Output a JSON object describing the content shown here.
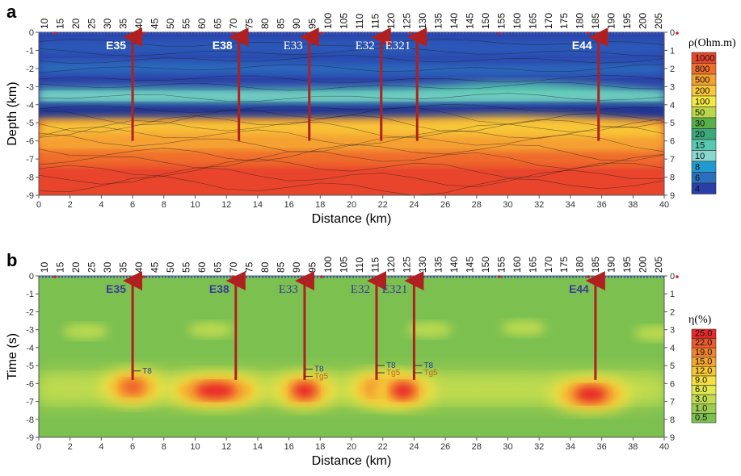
{
  "chart_data": [
    {
      "panel": "a",
      "type": "heatmap",
      "ylabel": "Depth (km)",
      "xlabel": "Distance (km)",
      "xlim": [
        0,
        40
      ],
      "ylim": [
        -9,
        0
      ],
      "x_ticks": [
        0,
        2,
        4,
        6,
        8,
        10,
        12,
        14,
        16,
        18,
        20,
        22,
        24,
        26,
        28,
        30,
        32,
        34,
        36,
        38,
        40
      ],
      "y_ticks": [
        0,
        -1,
        -2,
        -3,
        -4,
        -5,
        -6,
        -7,
        -8,
        -9
      ],
      "y_right_ticks": [
        0,
        1,
        2,
        3,
        4,
        5,
        6,
        7,
        8,
        9
      ],
      "station_ticks": [
        10,
        15,
        20,
        25,
        30,
        35,
        40,
        45,
        50,
        55,
        60,
        65,
        70,
        75,
        80,
        85,
        90,
        95,
        100,
        105,
        110,
        115,
        120,
        125,
        130,
        135,
        140,
        145,
        150,
        155,
        160,
        165,
        170,
        175,
        180,
        185,
        190,
        195,
        200,
        205
      ],
      "wells": [
        {
          "name": "E35",
          "x": 6.0,
          "font": "sans",
          "color": "#ffffff",
          "bottom": -6.0
        },
        {
          "name": "E38",
          "x": 12.8,
          "font": "sans",
          "color": "#ffffff",
          "bottom": -6.0
        },
        {
          "name": "E33",
          "x": 17.3,
          "font": "serif",
          "color": "#ffffff",
          "bottom": -6.0
        },
        {
          "name": "E32",
          "x": 21.9,
          "font": "serif",
          "color": "#ffffff",
          "bottom": -6.0
        },
        {
          "name": "E321",
          "x": 24.2,
          "font": "serif",
          "color": "#ffffff",
          "bottom": -6.0
        },
        {
          "name": "E44",
          "x": 35.8,
          "font": "sans",
          "color": "#ffffff",
          "bottom": -6.0
        }
      ],
      "legend_title": "ρ(Ohm.m)",
      "legend": [
        "1000",
        "800",
        "500",
        "200",
        "100",
        "50",
        "30",
        "20",
        "15",
        "10",
        "8",
        "6",
        "4"
      ],
      "legend_colors": [
        "#e8452c",
        "#f0702a",
        "#f5a030",
        "#f8c838",
        "#f5e842",
        "#b8d84a",
        "#58b048",
        "#3aa878",
        "#58c8b0",
        "#88d8d0",
        "#1f9bd0",
        "#2a70c0",
        "#2a3ea8"
      ],
      "layers": [
        {
          "range": "0 to -0.3",
          "value": "4-6"
        },
        {
          "range": "-0.3 to -3",
          "value": "4-8"
        },
        {
          "range": "-3 to -4",
          "value": "8-15"
        },
        {
          "range": "-4 to -4.8",
          "value": "4-6"
        },
        {
          "range": "-4.8 to -6",
          "value": "50-200"
        },
        {
          "range": "-6 to -9",
          "value": "500-1000"
        }
      ]
    },
    {
      "panel": "b",
      "type": "heatmap",
      "ylabel": "Time (s)",
      "xlabel": "Distance (km)",
      "xlim": [
        0,
        40
      ],
      "ylim": [
        -9,
        0
      ],
      "x_ticks": [
        0,
        2,
        4,
        6,
        8,
        10,
        12,
        14,
        16,
        18,
        20,
        22,
        24,
        26,
        28,
        30,
        32,
        34,
        36,
        38,
        40
      ],
      "y_ticks": [
        0,
        -1,
        -2,
        -3,
        -4,
        -5,
        -6,
        -7,
        -8,
        -9
      ],
      "y_right_ticks": [
        0,
        1,
        2,
        3,
        4,
        5,
        6,
        7,
        8,
        9
      ],
      "station_ticks": [
        10,
        15,
        20,
        25,
        30,
        35,
        40,
        45,
        50,
        55,
        60,
        65,
        70,
        75,
        80,
        85,
        90,
        95,
        100,
        105,
        110,
        115,
        120,
        125,
        130,
        135,
        140,
        145,
        150,
        155,
        160,
        165,
        170,
        175,
        180,
        185,
        190,
        195,
        200,
        205
      ],
      "wells": [
        {
          "name": "E35",
          "x": 6.0,
          "font": "sans",
          "color": "#3a3a9a",
          "bottom": -5.8,
          "markers": [
            {
              "label": "T8",
              "y": -5.3
            }
          ]
        },
        {
          "name": "E38",
          "x": 12.6,
          "font": "sans",
          "color": "#3a3a9a",
          "bottom": -5.8,
          "markers": []
        },
        {
          "name": "E33",
          "x": 17.0,
          "font": "serif",
          "color": "#3a3a9a",
          "bottom": -5.8,
          "markers": [
            {
              "label": "T8",
              "y": -5.2
            },
            {
              "label": "Tg5",
              "y": -5.6
            }
          ]
        },
        {
          "name": "E32",
          "x": 21.6,
          "font": "serif",
          "color": "#3a3a9a",
          "bottom": -5.8,
          "markers": [
            {
              "label": "T8",
              "y": -5.0
            },
            {
              "label": "Tg5",
              "y": -5.4
            }
          ]
        },
        {
          "name": "E321",
          "x": 24.0,
          "font": "serif",
          "color": "#3a3a9a",
          "bottom": -5.8,
          "markers": [
            {
              "label": "T8",
              "y": -5.0
            },
            {
              "label": "Tg5",
              "y": -5.4
            }
          ]
        },
        {
          "name": "E44",
          "x": 35.6,
          "font": "sans",
          "color": "#3a3a9a",
          "bottom": -5.8,
          "markers": []
        }
      ],
      "legend_title": "η(%)",
      "legend": [
        "25.0",
        "22.0",
        "19.0",
        "15.0",
        "12.0",
        "9.0",
        "6.0",
        "3.0",
        "1.0",
        "0.5"
      ],
      "legend_colors": [
        "#e8282a",
        "#ee5a2c",
        "#f2842c",
        "#f5a62e",
        "#f8c832",
        "#f5e040",
        "#e0e84a",
        "#c0dc50",
        "#9ccc50",
        "#7cc050"
      ],
      "anomalies": [
        {
          "x": 6.0,
          "y": -6.2,
          "value": "9-12"
        },
        {
          "x": 11.3,
          "y": -6.4,
          "value": "22-25"
        },
        {
          "x": 17.0,
          "y": -6.4,
          "value": "19-22"
        },
        {
          "x": 21.8,
          "y": -6.3,
          "value": "15-19"
        },
        {
          "x": 23.3,
          "y": -6.4,
          "value": "22-25"
        },
        {
          "x": 35.3,
          "y": -6.6,
          "value": "22-25"
        }
      ]
    }
  ]
}
